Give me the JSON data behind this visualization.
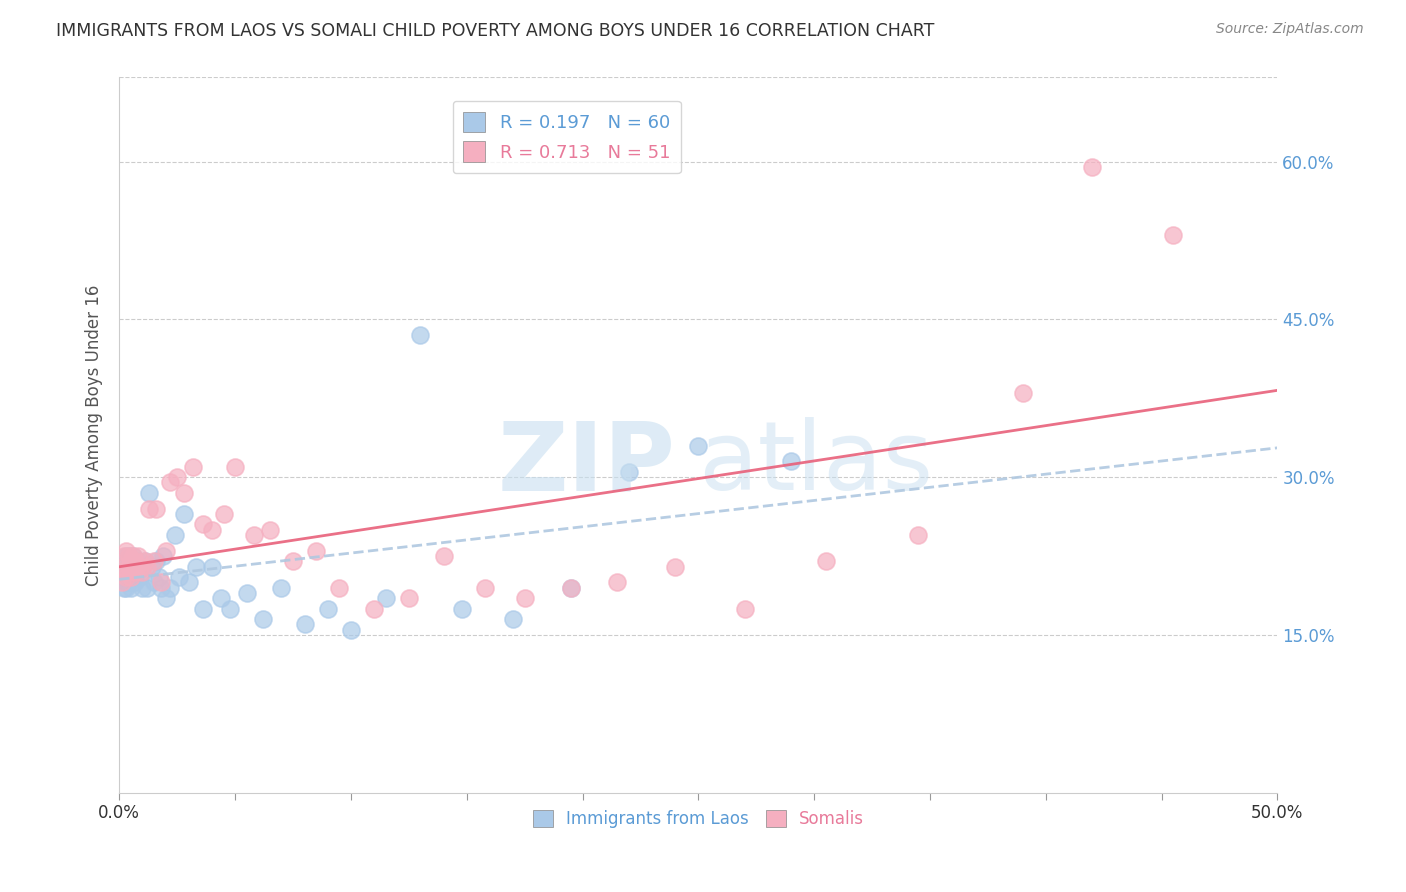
{
  "title": "IMMIGRANTS FROM LAOS VS SOMALI CHILD POVERTY AMONG BOYS UNDER 16 CORRELATION CHART",
  "source": "Source: ZipAtlas.com",
  "ylabel": "Child Poverty Among Boys Under 16",
  "xlim": [
    0.0,
    0.5
  ],
  "ylim": [
    0.0,
    0.68
  ],
  "xtick_positions": [
    0.0,
    0.05,
    0.1,
    0.15,
    0.2,
    0.25,
    0.3,
    0.35,
    0.4,
    0.45,
    0.5
  ],
  "xtick_labels_sparse": [
    "0.0%",
    "",
    "",
    "",
    "",
    "",
    "",
    "",
    "",
    "",
    "50.0%"
  ],
  "yticks_right": [
    0.15,
    0.3,
    0.45,
    0.6
  ],
  "ytick_labels_right": [
    "15.0%",
    "30.0%",
    "45.0%",
    "60.0%"
  ],
  "laos_R": 0.197,
  "laos_N": 60,
  "somali_R": 0.713,
  "somali_N": 51,
  "laos_color": "#aac9e8",
  "somali_color": "#f5afc0",
  "laos_line_color": "#b0c8e0",
  "somali_line_color": "#e8607a",
  "laos_line_solid_color": "#5b9bd5",
  "laos_x": [
    0.001,
    0.001,
    0.002,
    0.002,
    0.002,
    0.003,
    0.003,
    0.003,
    0.003,
    0.004,
    0.004,
    0.004,
    0.004,
    0.005,
    0.005,
    0.005,
    0.005,
    0.006,
    0.006,
    0.007,
    0.007,
    0.008,
    0.008,
    0.009,
    0.01,
    0.01,
    0.011,
    0.012,
    0.013,
    0.014,
    0.015,
    0.016,
    0.017,
    0.018,
    0.019,
    0.02,
    0.022,
    0.024,
    0.026,
    0.028,
    0.03,
    0.033,
    0.036,
    0.04,
    0.044,
    0.048,
    0.055,
    0.062,
    0.07,
    0.08,
    0.09,
    0.1,
    0.115,
    0.13,
    0.148,
    0.17,
    0.195,
    0.22,
    0.25,
    0.29
  ],
  "laos_y": [
    0.205,
    0.215,
    0.195,
    0.21,
    0.22,
    0.2,
    0.215,
    0.225,
    0.195,
    0.205,
    0.215,
    0.225,
    0.2,
    0.21,
    0.22,
    0.195,
    0.21,
    0.225,
    0.205,
    0.215,
    0.2,
    0.22,
    0.21,
    0.205,
    0.215,
    0.195,
    0.22,
    0.195,
    0.285,
    0.215,
    0.2,
    0.22,
    0.205,
    0.195,
    0.225,
    0.185,
    0.195,
    0.245,
    0.205,
    0.265,
    0.2,
    0.215,
    0.175,
    0.215,
    0.185,
    0.175,
    0.19,
    0.165,
    0.195,
    0.16,
    0.175,
    0.155,
    0.185,
    0.435,
    0.175,
    0.165,
    0.195,
    0.305,
    0.33,
    0.315
  ],
  "somali_x": [
    0.001,
    0.001,
    0.002,
    0.002,
    0.003,
    0.003,
    0.004,
    0.004,
    0.005,
    0.005,
    0.006,
    0.006,
    0.007,
    0.007,
    0.008,
    0.009,
    0.01,
    0.011,
    0.012,
    0.013,
    0.015,
    0.016,
    0.018,
    0.02,
    0.022,
    0.025,
    0.028,
    0.032,
    0.036,
    0.04,
    0.045,
    0.05,
    0.058,
    0.065,
    0.075,
    0.085,
    0.095,
    0.11,
    0.125,
    0.14,
    0.158,
    0.175,
    0.195,
    0.215,
    0.24,
    0.27,
    0.305,
    0.345,
    0.39,
    0.42,
    0.455
  ],
  "somali_y": [
    0.2,
    0.215,
    0.21,
    0.225,
    0.205,
    0.23,
    0.215,
    0.225,
    0.205,
    0.22,
    0.215,
    0.225,
    0.21,
    0.22,
    0.225,
    0.215,
    0.21,
    0.22,
    0.215,
    0.27,
    0.22,
    0.27,
    0.2,
    0.23,
    0.295,
    0.3,
    0.285,
    0.31,
    0.255,
    0.25,
    0.265,
    0.31,
    0.245,
    0.25,
    0.22,
    0.23,
    0.195,
    0.175,
    0.185,
    0.225,
    0.195,
    0.185,
    0.195,
    0.2,
    0.215,
    0.175,
    0.22,
    0.245,
    0.38,
    0.595,
    0.53
  ]
}
